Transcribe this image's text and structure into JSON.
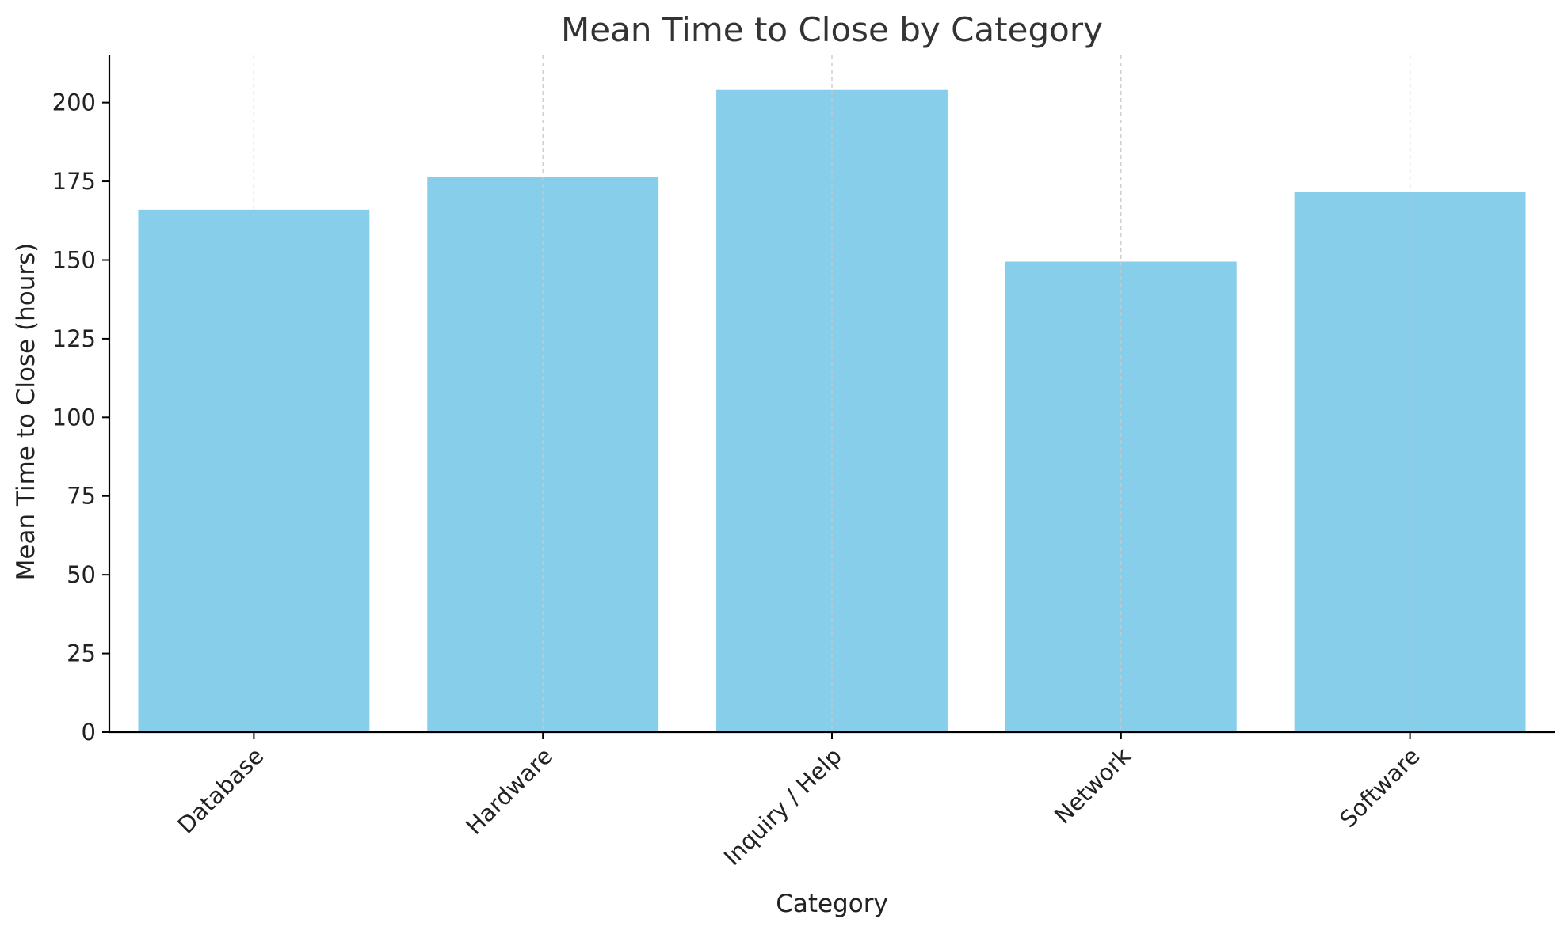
{
  "chart_data": {
    "type": "bar",
    "title": "Mean Time to Close by Category",
    "xlabel": "Category",
    "ylabel": "Mean Time to Close (hours)",
    "categories": [
      "Database",
      "Hardware",
      "Inquiry / Help",
      "Network",
      "Software"
    ],
    "values": [
      166,
      176.5,
      204,
      149.5,
      171.5
    ],
    "ylim": [
      0,
      215
    ],
    "yticks": [
      0,
      25,
      50,
      75,
      100,
      125,
      150,
      175,
      200
    ],
    "grid": "vertical dashed",
    "bar_color": "#87CEEB",
    "grid_color": "#c8c8c8",
    "axis_color": "#000000"
  }
}
